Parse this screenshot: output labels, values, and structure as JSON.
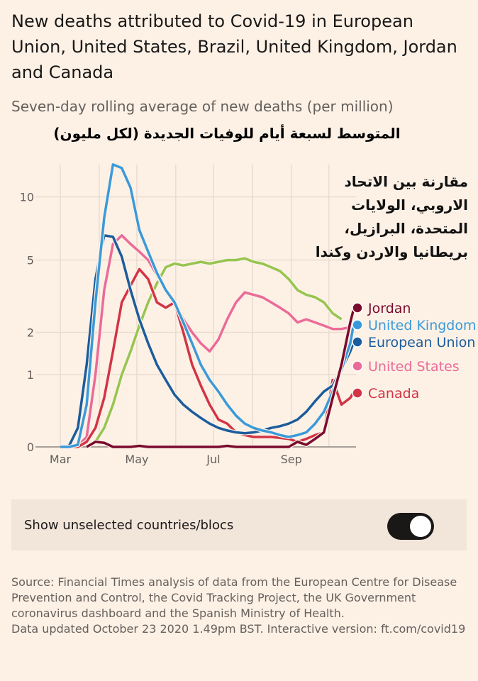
{
  "title": "New deaths attributed to Covid-19 in European Union, United States, Brazil, United Kingdom, Jordan and Canada",
  "subtitle": "Seven-day rolling average of new deaths (per million)",
  "arabic_subtitle": "المتوسط لسبعة أيام للوفيات الجديدة (لكل مليون)",
  "arabic_note": "مقارنة بين الاتحاد الاروبي، الولايات المتحدة، البرازيل، بريطانيا والاردن وكندا",
  "toggle": {
    "label": "Show unselected countries/blocs",
    "on": true
  },
  "source": "Source: Financial Times analysis of data from the European Centre for Disease Prevention and Control, the Covid Tracking Project, the UK Government coronavirus dashboard and the Spanish Ministry of Health.",
  "updated": "Data updated October 23 2020 1.49pm BST. Interactive version: ft.com/covid19",
  "chart_data": {
    "type": "line",
    "yscale": "log1p",
    "ylim": [
      0,
      14
    ],
    "yticks": [
      0,
      1,
      2,
      5,
      10
    ],
    "xticks": [
      "Mar",
      "May",
      "Jul",
      "Sep"
    ],
    "grid": true,
    "legend": "right-end-labels",
    "x": [
      "2020-03-01",
      "2020-03-08",
      "2020-03-15",
      "2020-03-22",
      "2020-03-29",
      "2020-04-05",
      "2020-04-12",
      "2020-04-19",
      "2020-04-26",
      "2020-05-03",
      "2020-05-10",
      "2020-05-17",
      "2020-05-24",
      "2020-05-31",
      "2020-06-07",
      "2020-06-14",
      "2020-06-21",
      "2020-06-28",
      "2020-07-05",
      "2020-07-12",
      "2020-07-19",
      "2020-07-26",
      "2020-08-02",
      "2020-08-09",
      "2020-08-16",
      "2020-08-23",
      "2020-08-30",
      "2020-09-06",
      "2020-09-13",
      "2020-09-20",
      "2020-09-27",
      "2020-10-04",
      "2020-10-11",
      "2020-10-18",
      "2020-10-21"
    ],
    "series": [
      {
        "name": "Brazil",
        "label": "",
        "color": "#96c550",
        "values": [
          null,
          null,
          null,
          0,
          0.05,
          0.2,
          0.5,
          1.0,
          1.5,
          2.2,
          3.0,
          3.8,
          4.6,
          4.8,
          4.7,
          4.8,
          4.9,
          4.8,
          4.9,
          5.0,
          5.0,
          5.1,
          4.9,
          4.8,
          4.6,
          4.4,
          4.0,
          3.5,
          3.3,
          3.2,
          3.0,
          2.6,
          2.4,
          null,
          null
        ]
      },
      {
        "name": "United States",
        "label": "United States",
        "color": "#eb6b98",
        "values": [
          0,
          0,
          0.01,
          0.1,
          1.0,
          3.5,
          6.0,
          6.6,
          6.0,
          5.5,
          5.0,
          4.2,
          3.5,
          3.0,
          2.4,
          2.0,
          1.7,
          1.5,
          1.8,
          2.4,
          3.0,
          3.4,
          3.3,
          3.2,
          3.0,
          2.8,
          2.6,
          2.3,
          2.4,
          2.3,
          2.2,
          2.1,
          2.1,
          2.15,
          null
        ]
      },
      {
        "name": "Canada",
        "label": "Canada",
        "color": "#d33445",
        "values": [
          0,
          0,
          0,
          0.05,
          0.2,
          0.6,
          1.5,
          3.0,
          3.7,
          4.5,
          4.0,
          3.0,
          2.8,
          3.0,
          2.0,
          1.2,
          0.8,
          0.5,
          0.3,
          0.25,
          0.15,
          0.12,
          0.1,
          0.1,
          0.1,
          0.09,
          0.08,
          0.05,
          0.08,
          0.12,
          0.15,
          0.9,
          0.5,
          0.6,
          0.7
        ]
      },
      {
        "name": "European Union",
        "label": "European Union",
        "color": "#1c5c9c",
        "values": [
          0,
          0.01,
          0.2,
          1.2,
          4.0,
          6.6,
          6.5,
          5.2,
          3.5,
          2.4,
          1.7,
          1.2,
          0.9,
          0.65,
          0.5,
          0.4,
          0.32,
          0.25,
          0.2,
          0.17,
          0.15,
          0.14,
          0.15,
          0.17,
          0.2,
          0.22,
          0.25,
          0.3,
          0.4,
          0.55,
          0.7,
          0.8,
          1.1,
          1.5,
          1.75
        ]
      },
      {
        "name": "United Kingdom",
        "label": "United Kingdom",
        "color": "#3a9ad9",
        "values": [
          0,
          0,
          0.02,
          0.5,
          3.0,
          8.0,
          14.0,
          13.5,
          11.0,
          7.0,
          5.5,
          4.3,
          3.5,
          3.0,
          2.3,
          1.7,
          1.2,
          0.9,
          0.7,
          0.5,
          0.35,
          0.25,
          0.2,
          0.17,
          0.15,
          0.12,
          0.1,
          0.12,
          0.15,
          0.25,
          0.4,
          0.7,
          1.1,
          1.7,
          2.3
        ]
      },
      {
        "name": "Jordan",
        "label": "Jordan",
        "color": "#7a0a2e",
        "values": [
          null,
          null,
          null,
          0,
          0.05,
          0.04,
          0,
          0,
          0,
          0.01,
          0,
          0,
          0,
          0,
          0,
          0,
          0,
          0,
          0,
          0.01,
          0,
          0,
          0,
          0,
          0,
          0,
          0,
          0.05,
          0.02,
          0.08,
          0.15,
          0.6,
          1.2,
          2.3,
          2.8
        ]
      }
    ]
  }
}
